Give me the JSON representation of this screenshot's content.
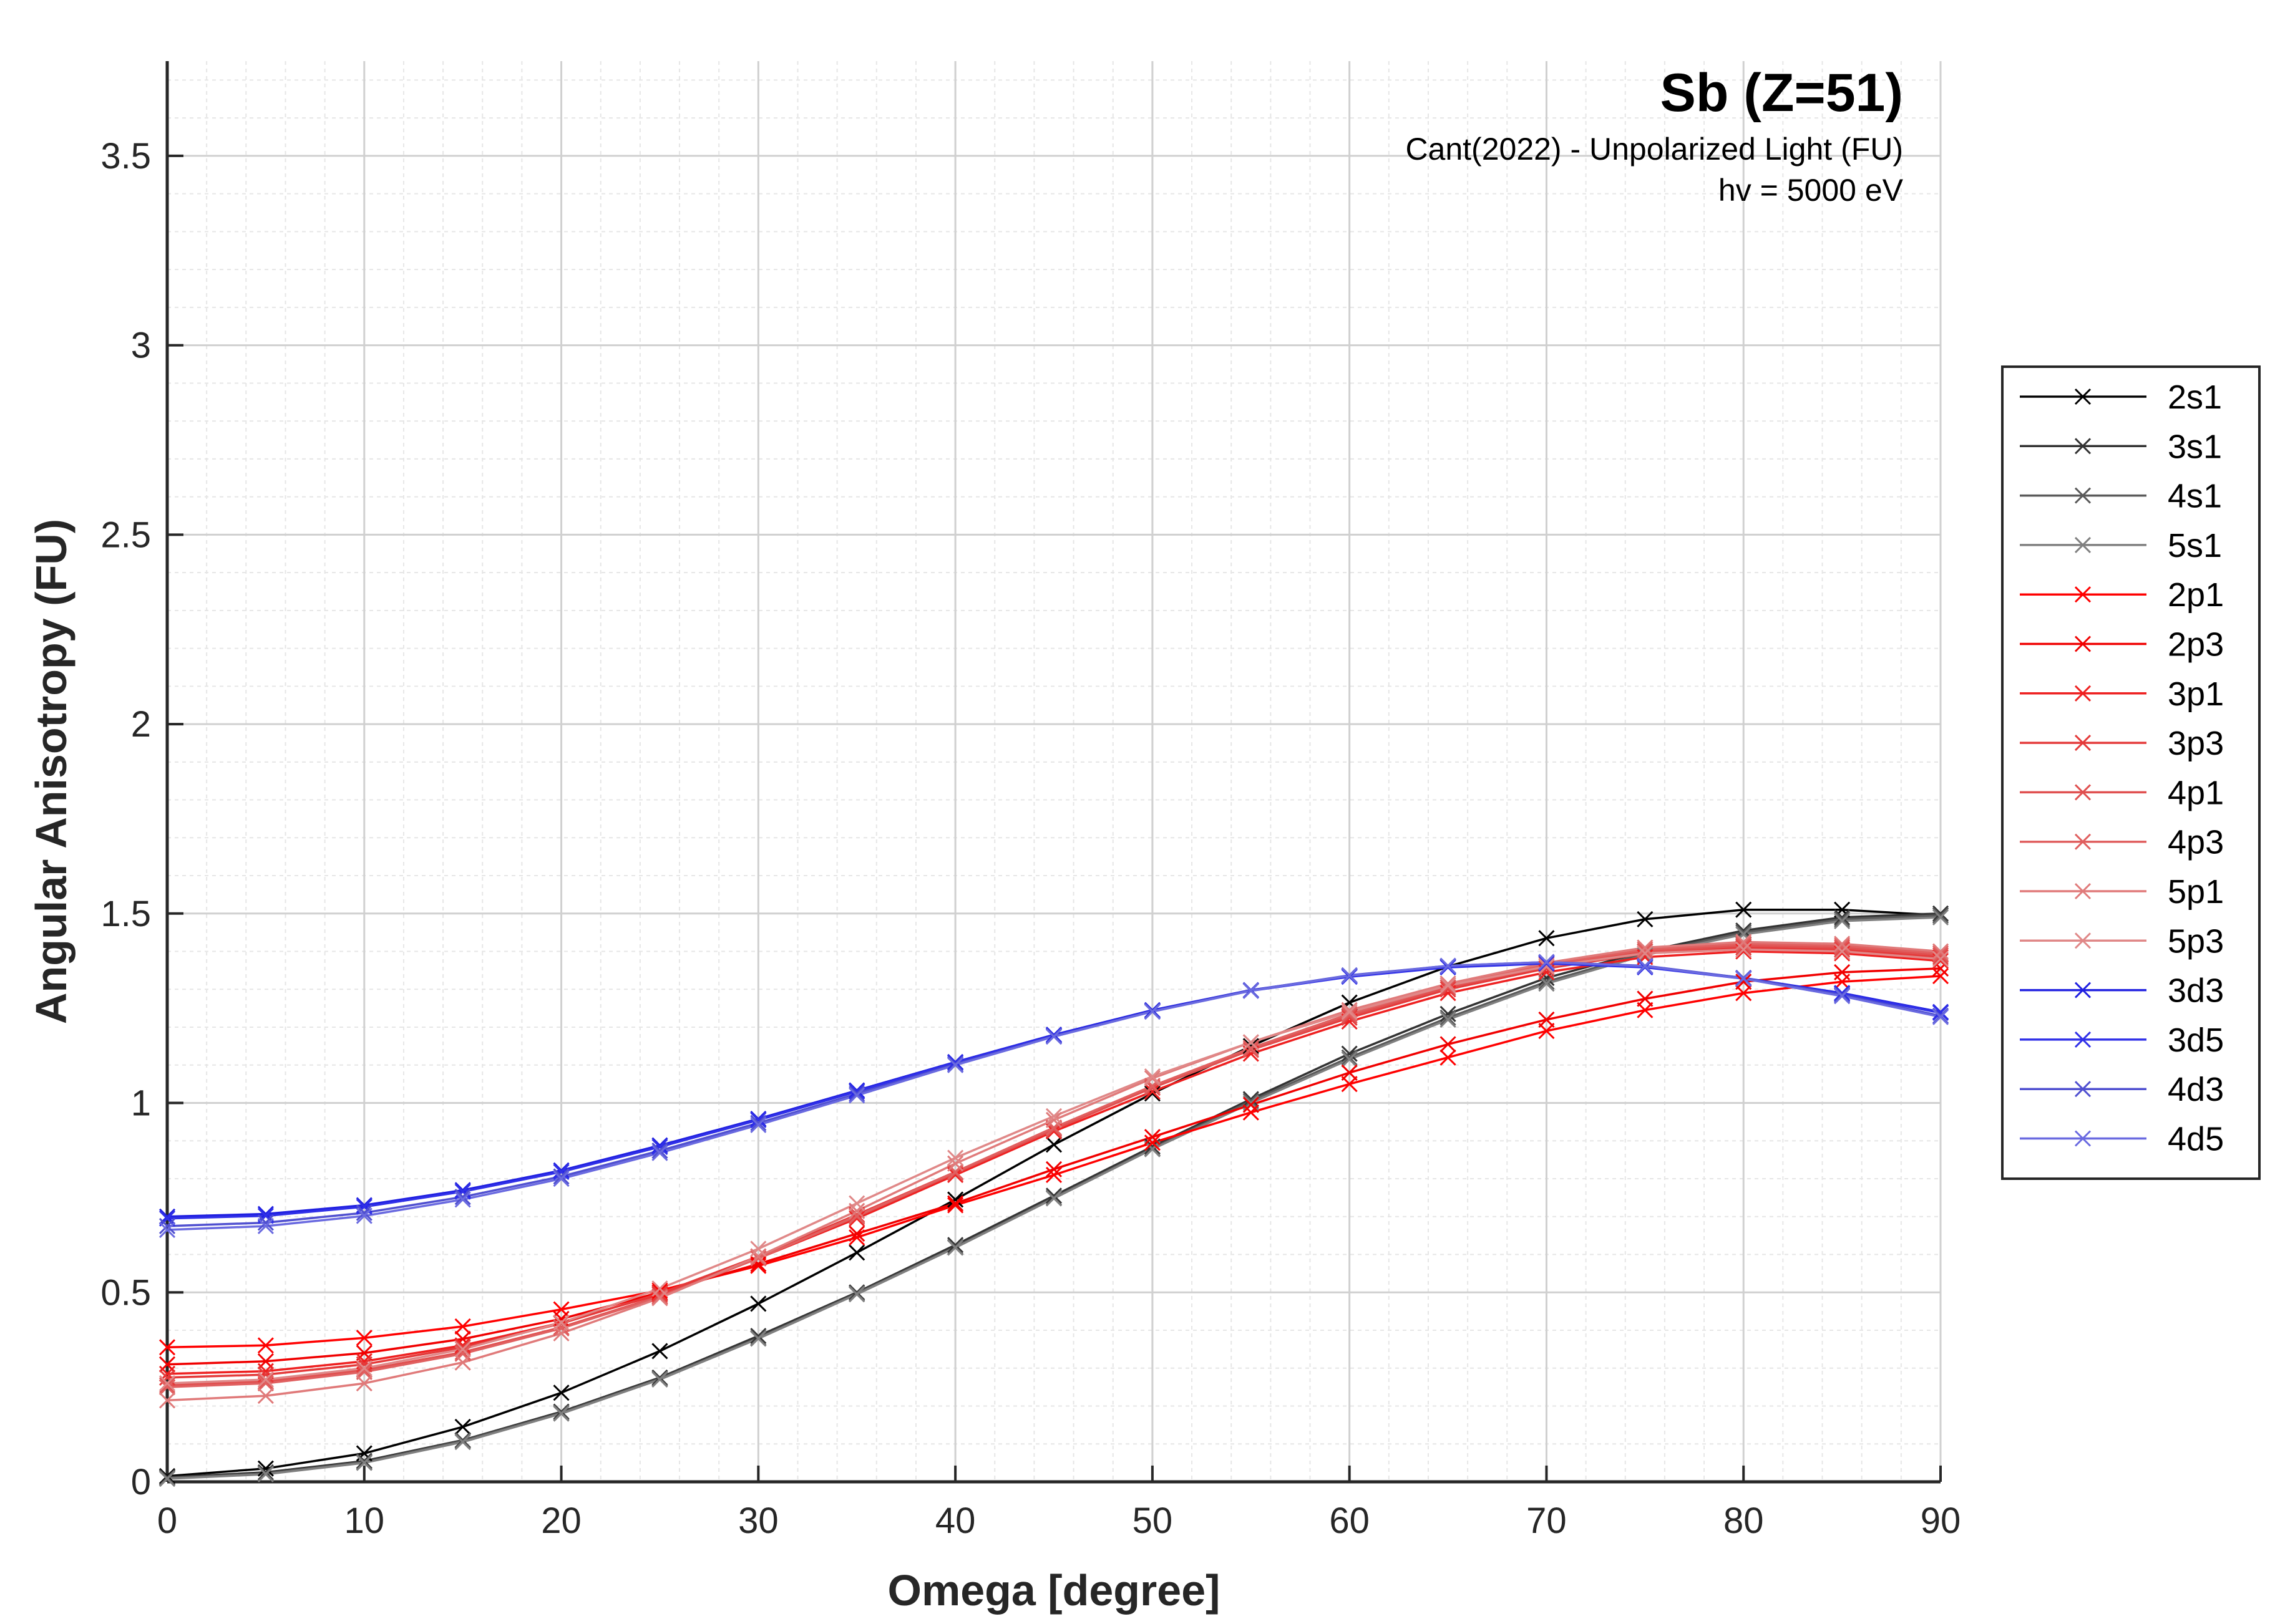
{
  "chart_data": {
    "type": "line",
    "title": "Sb (Z=51)",
    "subtitle_lines": [
      "Cant(2022) - Unpolarized Light (FU)",
      "hv = 5000 eV"
    ],
    "xlabel": "Omega [degree]",
    "ylabel": "Angular Anisotropy (FU)",
    "xlim": [
      0,
      90
    ],
    "ylim": [
      0,
      3.75
    ],
    "xticks": [
      0,
      10,
      20,
      30,
      40,
      50,
      60,
      70,
      80,
      90
    ],
    "yticks": [
      0,
      0.5,
      1,
      1.5,
      2,
      2.5,
      3,
      3.5
    ],
    "xtick_labels": [
      "0",
      "10",
      "20",
      "30",
      "40",
      "50",
      "60",
      "70",
      "80",
      "90"
    ],
    "ytick_labels": [
      "0",
      "0.5",
      "1",
      "1.5",
      "2",
      "2.5",
      "3",
      "3.5"
    ],
    "grid": true,
    "minor_grid": true,
    "legend_position": "outside-right",
    "marker": "x",
    "x": [
      0,
      5,
      10,
      15,
      20,
      25,
      30,
      35,
      40,
      45,
      50,
      55,
      60,
      65,
      70,
      75,
      80,
      85,
      90
    ],
    "series": [
      {
        "name": "2s1",
        "color": "#000000",
        "values": [
          0.015,
          0.035,
          0.075,
          0.145,
          0.235,
          0.345,
          0.47,
          0.605,
          0.745,
          0.89,
          1.025,
          1.15,
          1.265,
          1.36,
          1.435,
          1.485,
          1.51,
          1.51,
          1.495
        ]
      },
      {
        "name": "3s1",
        "color": "#333333",
        "values": [
          0.012,
          0.025,
          0.055,
          0.11,
          0.185,
          0.275,
          0.385,
          0.5,
          0.625,
          0.755,
          0.885,
          1.01,
          1.13,
          1.235,
          1.33,
          1.4,
          1.455,
          1.49,
          1.5
        ]
      },
      {
        "name": "4s1",
        "color": "#5a5a5a",
        "values": [
          0.01,
          0.022,
          0.052,
          0.108,
          0.182,
          0.272,
          0.38,
          0.497,
          0.62,
          0.75,
          0.88,
          1.005,
          1.12,
          1.225,
          1.32,
          1.395,
          1.45,
          1.485,
          1.495
        ]
      },
      {
        "name": "5s1",
        "color": "#808080",
        "values": [
          0.008,
          0.02,
          0.05,
          0.105,
          0.18,
          0.27,
          0.378,
          0.495,
          0.618,
          0.748,
          0.878,
          1.0,
          1.115,
          1.22,
          1.315,
          1.39,
          1.445,
          1.48,
          1.49
        ]
      },
      {
        "name": "2p1",
        "color": "#ff0000",
        "values": [
          0.355,
          0.36,
          0.38,
          0.41,
          0.455,
          0.505,
          0.57,
          0.645,
          0.73,
          0.81,
          0.895,
          0.975,
          1.05,
          1.12,
          1.19,
          1.245,
          1.29,
          1.32,
          1.335
        ]
      },
      {
        "name": "2p3",
        "color": "#f00000",
        "values": [
          0.31,
          0.318,
          0.34,
          0.377,
          0.43,
          0.5,
          0.575,
          0.655,
          0.735,
          0.825,
          0.91,
          0.995,
          1.08,
          1.155,
          1.22,
          1.275,
          1.32,
          1.345,
          1.355
        ]
      },
      {
        "name": "3p1",
        "color": "#ee2020",
        "values": [
          0.285,
          0.292,
          0.318,
          0.36,
          0.42,
          0.495,
          0.59,
          0.695,
          0.81,
          0.925,
          1.03,
          1.13,
          1.215,
          1.29,
          1.345,
          1.385,
          1.4,
          1.395,
          1.375
        ]
      },
      {
        "name": "3p3",
        "color": "#e43a3a",
        "values": [
          0.275,
          0.283,
          0.31,
          0.355,
          0.418,
          0.497,
          0.595,
          0.705,
          0.818,
          0.932,
          1.04,
          1.14,
          1.225,
          1.3,
          1.355,
          1.395,
          1.41,
          1.405,
          1.385
        ]
      },
      {
        "name": "4p1",
        "color": "#e05050",
        "values": [
          0.255,
          0.265,
          0.295,
          0.342,
          0.408,
          0.49,
          0.59,
          0.7,
          0.815,
          0.93,
          1.04,
          1.14,
          1.23,
          1.305,
          1.36,
          1.4,
          1.415,
          1.41,
          1.39
        ]
      },
      {
        "name": "4p3",
        "color": "#e06060",
        "values": [
          0.25,
          0.26,
          0.29,
          0.338,
          0.405,
          0.488,
          0.59,
          0.702,
          0.818,
          0.935,
          1.045,
          1.145,
          1.235,
          1.31,
          1.365,
          1.405,
          1.42,
          1.415,
          1.395
        ]
      },
      {
        "name": "5p1",
        "color": "#e07a7a",
        "values": [
          0.215,
          0.227,
          0.26,
          0.315,
          0.392,
          0.485,
          0.595,
          0.715,
          0.84,
          0.955,
          1.065,
          1.16,
          1.245,
          1.315,
          1.37,
          1.41,
          1.425,
          1.42,
          1.4
        ]
      },
      {
        "name": "5p3",
        "color": "#e08888",
        "values": [
          0.26,
          0.27,
          0.3,
          0.35,
          0.42,
          0.51,
          0.615,
          0.735,
          0.855,
          0.965,
          1.07,
          1.16,
          1.24,
          1.31,
          1.36,
          1.395,
          1.405,
          1.4,
          1.38
        ]
      },
      {
        "name": "3d3",
        "color": "#2020e0",
        "values": [
          0.7,
          0.707,
          0.73,
          0.77,
          0.822,
          0.888,
          0.958,
          1.033,
          1.108,
          1.18,
          1.245,
          1.298,
          1.335,
          1.36,
          1.37,
          1.36,
          1.33,
          1.29,
          1.24
        ]
      },
      {
        "name": "3d5",
        "color": "#3030e8",
        "values": [
          0.695,
          0.702,
          0.726,
          0.766,
          0.818,
          0.884,
          0.955,
          1.03,
          1.106,
          1.178,
          1.243,
          1.296,
          1.333,
          1.358,
          1.368,
          1.358,
          1.328,
          1.288,
          1.238
        ]
      },
      {
        "name": "4d3",
        "color": "#5050d0",
        "values": [
          0.675,
          0.684,
          0.71,
          0.752,
          0.806,
          0.874,
          0.947,
          1.024,
          1.102,
          1.176,
          1.242,
          1.297,
          1.337,
          1.362,
          1.372,
          1.362,
          1.33,
          1.285,
          1.23
        ]
      },
      {
        "name": "4d5",
        "color": "#6a6ae0",
        "values": [
          0.665,
          0.675,
          0.702,
          0.745,
          0.8,
          0.868,
          0.942,
          1.02,
          1.1,
          1.175,
          1.241,
          1.296,
          1.336,
          1.362,
          1.372,
          1.361,
          1.328,
          1.282,
          1.227
        ]
      }
    ]
  }
}
